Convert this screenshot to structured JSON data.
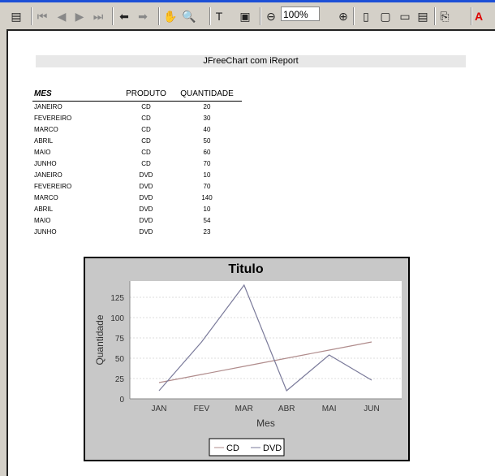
{
  "toolbar": {
    "zoom_value": "100%",
    "icons": [
      "toggle-panel-icon",
      "first-page-icon",
      "prev-page-icon",
      "next-page-icon",
      "last-page-icon",
      "back-icon",
      "forward-icon",
      "hand-icon",
      "zoom-in-icon",
      "text-select-icon",
      "snapshot-icon",
      "zoom-out-minus-icon",
      "zoom-plus-icon",
      "single-page-icon",
      "fit-page-icon",
      "fit-width-icon",
      "reflow-icon",
      "export-icon",
      "adobe-icon"
    ]
  },
  "report": {
    "title": "JFreeChart com  iReport",
    "columns": [
      "MES",
      "PRODUTO",
      "QUANTIDADE"
    ],
    "rows": [
      [
        "JANEIRO",
        "CD",
        "20"
      ],
      [
        "FEVEREIRO",
        "CD",
        "30"
      ],
      [
        "MARCO",
        "CD",
        "40"
      ],
      [
        "ABRIL",
        "CD",
        "50"
      ],
      [
        "MAIO",
        "CD",
        "60"
      ],
      [
        "JUNHO",
        "CD",
        "70"
      ],
      [
        "JANEIRO",
        "DVD",
        "10"
      ],
      [
        "FEVEREIRO",
        "DVD",
        "70"
      ],
      [
        "MARCO",
        "DVD",
        "140"
      ],
      [
        "ABRIL",
        "DVD",
        "10"
      ],
      [
        "MAIO",
        "DVD",
        "54"
      ],
      [
        "JUNHO",
        "DVD",
        "23"
      ]
    ]
  },
  "chart_data": {
    "type": "line",
    "title": "Titulo",
    "xlabel": "Mes",
    "ylabel": "Quantidade",
    "categories": [
      "JAN",
      "FEV",
      "MAR",
      "ABR",
      "MAI",
      "JUN"
    ],
    "ylim": [
      0,
      145
    ],
    "yticks": [
      "0",
      "25",
      "50",
      "75",
      "100",
      "125"
    ],
    "grid": true,
    "legend": "bottom",
    "series": [
      {
        "name": "CD",
        "values": [
          20,
          30,
          40,
          50,
          60,
          70
        ],
        "color": "#b08c8c"
      },
      {
        "name": "DVD",
        "values": [
          10,
          70,
          140,
          10,
          54,
          23
        ],
        "color": "#7a7a9a"
      }
    ]
  }
}
